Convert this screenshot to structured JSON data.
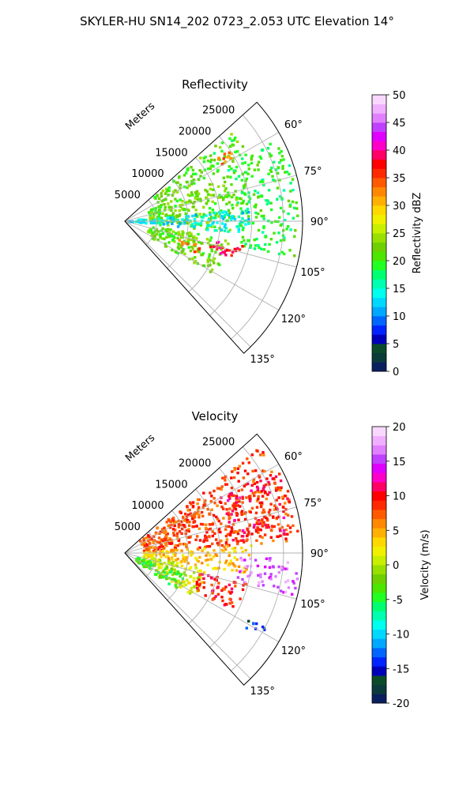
{
  "figure": {
    "title": "SKYLER-HU  SN14_202  0723_2.053 UTC Elevation 14°"
  },
  "chart_data": [
    {
      "type": "heatmap",
      "subtype": "polar-sector",
      "title": "Reflectivity",
      "range_label": "Meters",
      "range_ticks": [
        5000,
        10000,
        15000,
        20000,
        25000
      ],
      "range_max": 28000,
      "azimuth_ticks": [
        60,
        75,
        90,
        105,
        120,
        135
      ],
      "azimuth_range": [
        48,
        138
      ],
      "grid": true,
      "colorbar": {
        "label": "Reflectivity dBZ",
        "min": 0,
        "max": 50,
        "ticks": [
          0,
          5,
          10,
          15,
          20,
          25,
          30,
          35,
          40,
          45,
          50
        ],
        "colors": [
          "#0a1f5e",
          "#0b3a3a",
          "#0c4a2c",
          "#0000b8",
          "#0024ff",
          "#0066ff",
          "#00a8ff",
          "#00d8ff",
          "#00ffee",
          "#00ffb0",
          "#00ff70",
          "#22ff22",
          "#4ce600",
          "#6ed000",
          "#98e000",
          "#c8ef00",
          "#f0f000",
          "#ffd800",
          "#ffb000",
          "#ff8800",
          "#ff5a00",
          "#ff2a00",
          "#ff0000",
          "#ff0066",
          "#ff00c8",
          "#e000ff",
          "#c040ff",
          "#e080ff",
          "#f0b0ff",
          "#f8d8ff"
        ]
      },
      "echoes": [
        {
          "az_range": [
            50,
            62
          ],
          "r_range": [
            6000,
            22000
          ],
          "level": 21
        },
        {
          "az_range": [
            62,
            102
          ],
          "r_range": [
            18000,
            27500
          ],
          "level": 19
        },
        {
          "az_range": [
            66,
            96
          ],
          "r_range": [
            4000,
            18000
          ],
          "level": 22
        },
        {
          "az_range": [
            84,
            96
          ],
          "r_range": [
            500,
            20000
          ],
          "level": 14
        },
        {
          "az_range": [
            100,
            122
          ],
          "r_range": [
            4000,
            17000
          ],
          "level": 22
        },
        {
          "az_range": [
            55,
            60
          ],
          "r_range": [
            17000,
            21000
          ],
          "level": 33
        },
        {
          "az_range": [
            102,
            110
          ],
          "r_range": [
            14000,
            19000
          ],
          "level": 38
        },
        {
          "az_range": [
            108,
            114
          ],
          "r_range": [
            9000,
            13000
          ],
          "level": 33
        }
      ]
    },
    {
      "type": "heatmap",
      "subtype": "polar-sector",
      "title": "Velocity",
      "range_label": "Meters",
      "range_ticks": [
        5000,
        10000,
        15000,
        20000,
        25000
      ],
      "range_max": 28000,
      "azimuth_ticks": [
        60,
        75,
        90,
        105,
        120,
        135
      ],
      "azimuth_range": [
        48,
        138
      ],
      "grid": true,
      "colorbar": {
        "label": "Velocity (m/s)",
        "min": -20,
        "max": 20,
        "ticks": [
          -20,
          -15,
          -10,
          -5,
          0,
          5,
          10,
          15,
          20
        ],
        "colors": [
          "#0a1f5e",
          "#0b3a3a",
          "#0c4a2c",
          "#0000b8",
          "#0024ff",
          "#0066ff",
          "#00a8ff",
          "#00d8ff",
          "#00ffee",
          "#00ffb0",
          "#00ff70",
          "#22ff22",
          "#4ce600",
          "#6ed000",
          "#98e000",
          "#c8ef00",
          "#f0f000",
          "#ffd800",
          "#ffb000",
          "#ff8800",
          "#ff5a00",
          "#ff2a00",
          "#ff0000",
          "#ff0066",
          "#ff00c8",
          "#e000ff",
          "#c040ff",
          "#e080ff",
          "#f0b0ff",
          "#f8d8ff"
        ]
      },
      "echoes": [
        {
          "az_range": [
            52,
            86
          ],
          "r_range": [
            3000,
            27000
          ],
          "level": 8
        },
        {
          "az_range": [
            60,
            84
          ],
          "r_range": [
            17000,
            27500
          ],
          "level": 10
        },
        {
          "az_range": [
            86,
            100
          ],
          "r_range": [
            3000,
            20000
          ],
          "level": 4
        },
        {
          "az_range": [
            92,
            104
          ],
          "r_range": [
            18000,
            27500
          ],
          "level": 16
        },
        {
          "az_range": [
            100,
            122
          ],
          "r_range": [
            3000,
            13000
          ],
          "level": 1
        },
        {
          "az_range": [
            104,
            118
          ],
          "r_range": [
            12000,
            20000
          ],
          "level": 9
        },
        {
          "az_range": [
            108,
            126
          ],
          "r_range": [
            2000,
            10000
          ],
          "level": -4
        },
        {
          "az_range": [
            118,
            122
          ],
          "r_range": [
            22000,
            26000
          ],
          "level": -15
        }
      ]
    }
  ]
}
